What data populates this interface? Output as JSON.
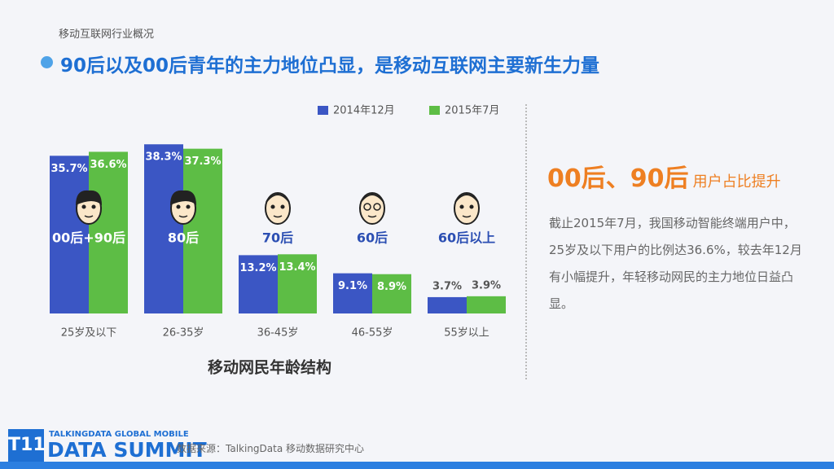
{
  "header": {
    "section": "移动互联网行业概况",
    "title": "90后以及00后青年的主力地位凸显，是移动互联网主要新生力量"
  },
  "chart_data": {
    "type": "bar",
    "title": "移动网民年龄结构",
    "categories": [
      "25岁及以下",
      "26-35岁",
      "36-45岁",
      "46-55岁",
      "55岁以上"
    ],
    "group_labels": [
      "00后+90后",
      "80后",
      "70后",
      "60后",
      "60后以上"
    ],
    "series": [
      {
        "name": "2014年12月",
        "color": "#3b56c4",
        "values": [
          35.7,
          38.3,
          13.2,
          9.1,
          3.7
        ],
        "value_labels": [
          "35.7%",
          "38.3%",
          "13.2%",
          "9.1%",
          "3.7%"
        ]
      },
      {
        "name": "2015年7月",
        "color": "#5dbd45",
        "values": [
          36.6,
          37.3,
          13.4,
          8.9,
          3.9
        ],
        "value_labels": [
          "36.6%",
          "37.3%",
          "13.4%",
          "8.9%",
          "3.9%"
        ]
      }
    ],
    "ylim": [
      0,
      40
    ],
    "legend": "top-right"
  },
  "insight": {
    "headline": "00后、90后",
    "headline_suffix": "用户占比提升",
    "body": "截止2015年7月，我国移动智能终端用户中，25岁及以下用户的比例达36.6%，较去年12月有小幅提升，年轻移动网民的主力地位日益凸显。"
  },
  "footer": {
    "badge": "T11",
    "logo_top": "TALKINGDATA GLOBAL MOBILE",
    "logo_main": "DATA SUMMIT",
    "source": "数据来源：TalkingData 移动数据研究中心"
  }
}
